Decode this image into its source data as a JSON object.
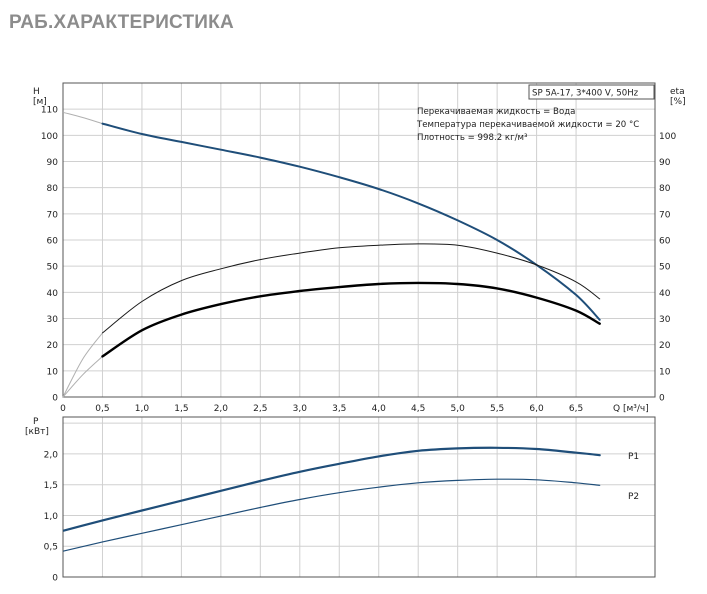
{
  "page": {
    "title": "РАБ.ХАРАКТЕРИСТИКА"
  },
  "colors": {
    "head_curve": "#1f4e79",
    "frame": "#555555",
    "grid": "#d0d0d0",
    "text": "#222222"
  },
  "chart_data": [
    {
      "type": "line",
      "panel": "top",
      "model_label": "SP 5A-17, 3*400 V, 50Hz",
      "info_lines": [
        "Перекачиваемая жидкость = Вода",
        "Температура перекачиваемой жидкости = 20 °C",
        "Плотность = 998.2 кг/м³"
      ],
      "xlabel": "Q [м³/ч]",
      "xlim": [
        0,
        7.5
      ],
      "x_ticks": [
        "0",
        "0,5",
        "1,0",
        "1,5",
        "2,0",
        "2,5",
        "3,0",
        "3,5",
        "4,0",
        "4,5",
        "5,0",
        "5,5",
        "6,0",
        "6,5"
      ],
      "y_left": {
        "label_line1": "H",
        "label_line2": "[м]",
        "lim": [
          0,
          120
        ],
        "ticks": [
          "0",
          "10",
          "20",
          "30",
          "40",
          "50",
          "60",
          "70",
          "80",
          "90",
          "100",
          "110"
        ]
      },
      "y_right": {
        "label_line1": "eta",
        "label_line2": "[%]",
        "lim": [
          0,
          120
        ],
        "ticks": [
          "0",
          "10",
          "20",
          "30",
          "40",
          "50",
          "60",
          "70",
          "80",
          "90",
          "100"
        ]
      },
      "grid": true,
      "series": [
        {
          "role": "head",
          "color": "#1f4e79",
          "x": [
            0.5,
            1.0,
            1.5,
            2.0,
            2.5,
            3.0,
            3.5,
            4.0,
            4.5,
            5.0,
            5.5,
            6.0,
            6.5,
            6.8
          ],
          "y": [
            104.5,
            100.5,
            97.5,
            94.5,
            91.5,
            88.0,
            84.0,
            79.5,
            74.0,
            67.5,
            60.0,
            50.5,
            39.0,
            29.5
          ],
          "extension": {
            "x": [
              0,
              0.25,
              0.5
            ],
            "y": [
              108.8,
              106.8,
              104.5
            ]
          }
        },
        {
          "role": "efficiency-thin",
          "color": "#1a1a1a",
          "x": [
            0.5,
            1.0,
            1.5,
            2.0,
            2.5,
            3.0,
            3.5,
            4.0,
            4.5,
            5.0,
            5.5,
            6.0,
            6.5,
            6.8
          ],
          "y": [
            24.5,
            36.5,
            44.5,
            49.0,
            52.5,
            55.0,
            57.0,
            58.0,
            58.5,
            58.0,
            55.0,
            50.5,
            44.0,
            37.5
          ],
          "extension": {
            "x": [
              0,
              0.25,
              0.5
            ],
            "y": [
              0,
              14.5,
              24.5
            ]
          }
        },
        {
          "role": "efficiency-bold",
          "color": "#000000",
          "x": [
            0.5,
            1.0,
            1.5,
            2.0,
            2.5,
            3.0,
            3.5,
            4.0,
            4.5,
            5.0,
            5.5,
            6.0,
            6.5,
            6.8
          ],
          "y": [
            15.5,
            25.5,
            31.5,
            35.5,
            38.5,
            40.5,
            42.0,
            43.2,
            43.6,
            43.2,
            41.5,
            38.0,
            33.0,
            28.0
          ],
          "extension": {
            "x": [
              0,
              0.25,
              0.5
            ],
            "y": [
              0,
              8.5,
              15.5
            ]
          }
        }
      ]
    },
    {
      "type": "line",
      "panel": "bottom",
      "xlim": [
        0,
        7.5
      ],
      "y": {
        "label_line1": "P",
        "label_line2": "[кВт]",
        "lim": [
          0,
          2.6
        ],
        "ticks": [
          "0",
          "0,5",
          "1,0",
          "1,5",
          "2,0"
        ]
      },
      "grid": true,
      "series": [
        {
          "name": "P1",
          "color": "#1f4e79",
          "x": [
            0.5,
            1.0,
            1.5,
            2.0,
            2.5,
            3.0,
            3.5,
            4.0,
            4.5,
            5.0,
            5.5,
            6.0,
            6.5,
            6.8
          ],
          "y": [
            0.92,
            1.08,
            1.24,
            1.4,
            1.56,
            1.71,
            1.84,
            1.96,
            2.05,
            2.09,
            2.1,
            2.08,
            2.02,
            1.98
          ],
          "extension": {
            "x": [
              0,
              0.5
            ],
            "y": [
              0.75,
              0.92
            ]
          }
        },
        {
          "name": "P2",
          "color": "#1f4e79",
          "x": [
            0.5,
            1.0,
            1.5,
            2.0,
            2.5,
            3.0,
            3.5,
            4.0,
            4.5,
            5.0,
            5.5,
            6.0,
            6.5,
            6.8
          ],
          "y": [
            0.57,
            0.71,
            0.85,
            0.99,
            1.13,
            1.26,
            1.37,
            1.46,
            1.53,
            1.57,
            1.59,
            1.58,
            1.53,
            1.49
          ],
          "extension": {
            "x": [
              0,
              0.5
            ],
            "y": [
              0.42,
              0.57
            ]
          }
        }
      ]
    }
  ]
}
